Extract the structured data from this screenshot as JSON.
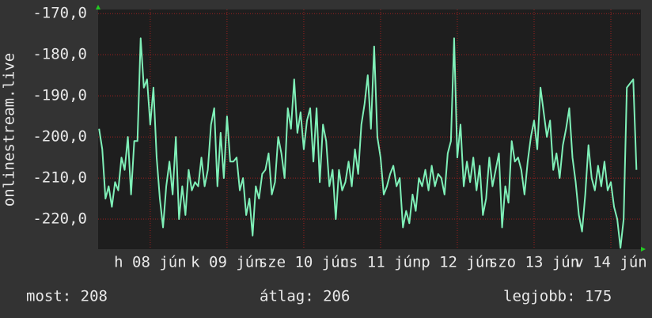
{
  "chart_data": {
    "type": "line",
    "y_label": "onlinestream.live",
    "x": [
      -16,
      -15,
      -14,
      -13,
      -12,
      -11,
      -10,
      -9,
      -8,
      -7,
      -6,
      -5,
      -4,
      -3,
      -2,
      -1,
      0,
      1,
      2,
      3,
      4,
      5,
      6,
      7,
      8,
      9,
      10,
      11,
      12,
      13,
      14,
      15,
      16,
      17,
      18,
      19,
      20,
      21,
      22,
      23,
      24,
      25,
      26,
      27,
      28,
      29,
      30,
      31,
      32,
      33,
      34,
      35,
      36,
      37,
      38,
      39,
      40,
      41,
      42,
      43,
      44,
      45,
      46,
      47,
      48,
      49,
      50,
      51,
      52,
      53,
      54,
      55,
      56,
      57,
      58,
      59,
      60,
      61,
      62,
      63,
      64,
      65,
      66,
      67,
      68,
      69,
      70,
      71,
      72,
      73,
      74,
      75,
      76,
      77,
      78,
      79,
      80,
      81,
      82,
      83,
      84,
      85,
      86,
      87,
      88,
      89,
      90,
      91,
      92,
      93,
      94,
      95,
      96,
      97,
      98,
      99,
      100,
      101,
      102,
      103,
      104,
      105,
      106,
      107,
      108,
      109,
      110,
      111,
      112,
      113,
      114,
      115,
      116,
      117,
      118,
      119,
      120,
      121,
      122,
      123,
      124,
      125,
      126,
      127,
      128,
      129,
      130,
      131,
      132,
      133,
      134,
      135,
      136,
      137,
      138,
      139,
      140,
      141,
      142,
      143,
      144,
      145,
      146,
      147,
      148,
      149,
      150,
      151,
      152
    ],
    "series": [
      {
        "color": "#7ff0b8",
        "values": [
          -198,
          -203,
          -215,
          -212,
          -217,
          -211,
          -213,
          -205,
          -208,
          -200,
          -214,
          -201,
          -201,
          -176,
          -188,
          -186,
          -197,
          -188,
          -205,
          -215,
          -222,
          -212,
          -206,
          -214,
          -200,
          -220,
          -212,
          -219,
          -208,
          -213,
          -211,
          -212,
          -205,
          -212,
          -208,
          -197,
          -193,
          -212,
          -199,
          -210,
          -195,
          -206,
          -206,
          -205,
          -213,
          -210,
          -219,
          -215,
          -224,
          -212,
          -215,
          -209,
          -208,
          -204,
          -214,
          -211,
          -200,
          -204,
          -210,
          -193,
          -198,
          -186,
          -199,
          -194,
          -203,
          -196,
          -193,
          -206,
          -193,
          -211,
          -197,
          -201,
          -212,
          -208,
          -220,
          -208,
          -213,
          -211,
          -206,
          -212,
          -203,
          -209,
          -197,
          -192,
          -185,
          -198,
          -178,
          -200,
          -205,
          -214,
          -212,
          -209,
          -207,
          -212,
          -210,
          -222,
          -218,
          -221,
          -214,
          -218,
          -210,
          -212,
          -208,
          -213,
          -207,
          -212,
          -209,
          -210,
          -214,
          -204,
          -201,
          -176,
          -205,
          -197,
          -212,
          -206,
          -211,
          -205,
          -213,
          -207,
          -219,
          -215,
          -205,
          -212,
          -208,
          -204,
          -222,
          -212,
          -216,
          -201,
          -206,
          -205,
          -208,
          -214,
          -206,
          -200,
          -196,
          -203,
          -188,
          -194,
          -200,
          -196,
          -208,
          -204,
          -210,
          -202,
          -198,
          -193,
          -205,
          -211,
          -219,
          -223,
          -214,
          -202,
          -210,
          -213,
          -207,
          -212,
          -206,
          -213,
          -211,
          -217,
          -220,
          -227,
          -220,
          -188,
          -187,
          -186,
          -208
        ]
      }
    ],
    "xlim": [
      -16.3,
      153.4
    ],
    "xticks": [
      {
        "value": 0,
        "label": "h 08 jún"
      },
      {
        "value": 24,
        "label": "k 09 jún"
      },
      {
        "value": 48,
        "label": "sze 10 jún"
      },
      {
        "value": 72,
        "label": "cs 11 jún"
      },
      {
        "value": 96,
        "label": "p 12 jún"
      },
      {
        "value": 120,
        "label": "szo 13 jún"
      },
      {
        "value": 144,
        "label": "v 14 jún"
      }
    ],
    "ylim": [
      -227.3,
      -169.0
    ],
    "yticks": [
      {
        "value": -170,
        "label": "-170,0"
      },
      {
        "value": -180,
        "label": "-180,0"
      },
      {
        "value": -190,
        "label": "-190,0"
      },
      {
        "value": -200,
        "label": "-200,0"
      },
      {
        "value": -210,
        "label": "-210,0"
      },
      {
        "value": -220,
        "label": "-220,0"
      }
    ],
    "grid": true,
    "stats": [
      "most: 208",
      "átlag: 206",
      "legjobb: 175"
    ]
  }
}
